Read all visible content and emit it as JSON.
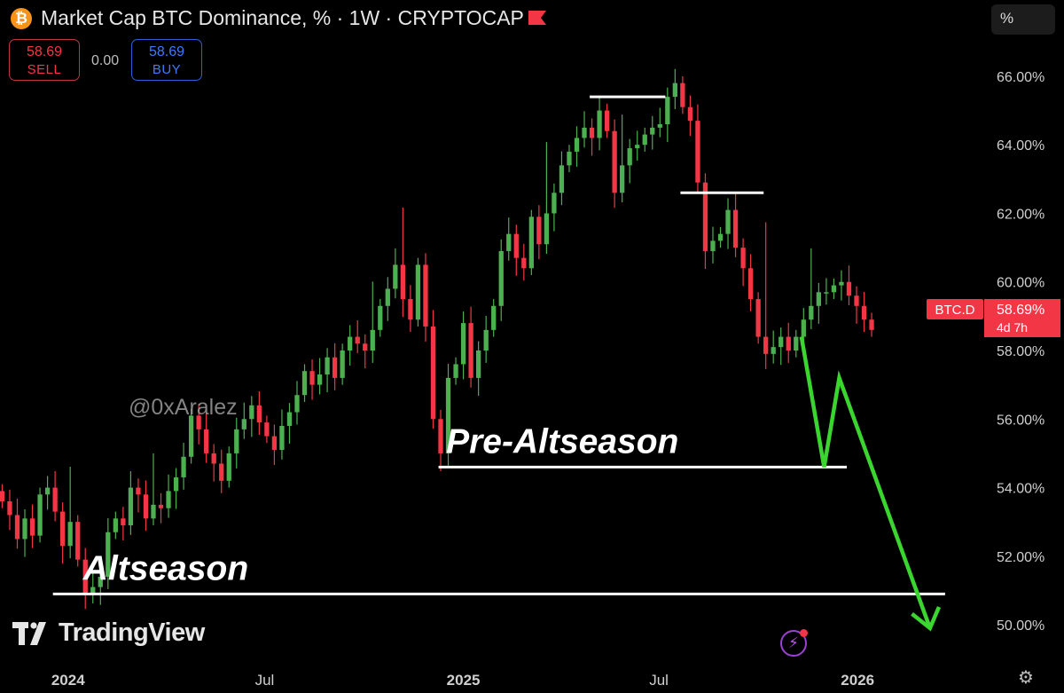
{
  "header": {
    "title": "Market Cap BTC Dominance, % · 1W · CRYPTOCAP",
    "coin_icon": "bitcoin-icon",
    "flag_icon": "flag-icon",
    "sell_price": "58.69",
    "sell_label": "SELL",
    "spread": "0.00",
    "buy_price": "58.69",
    "buy_label": "BUY",
    "scale_button": "%"
  },
  "watermark": {
    "handle": "@0xAralez",
    "brand": "TradingView"
  },
  "price_tag": {
    "symbol": "BTC.D",
    "price": "58.69%",
    "countdown": "4d 7h"
  },
  "colors": {
    "up": "#4caf50",
    "down": "#f23645",
    "projection": "#3bd52f",
    "level": "#ffffff",
    "axis_text": "#cfcfcf"
  },
  "chart_data": {
    "type": "candlestick",
    "title": "Market Cap BTC Dominance, % · 1W · CRYPTOCAP",
    "y_unit": "%",
    "ylim": [
      49.2,
      66.8
    ],
    "y_ticks": [
      "50.00%",
      "52.00%",
      "54.00%",
      "56.00%",
      "58.00%",
      "60.00%",
      "62.00%",
      "64.00%",
      "66.00%"
    ],
    "y_tick_values": [
      50,
      52,
      54,
      56,
      58,
      60,
      62,
      64,
      66
    ],
    "x_ticks": [
      "2024",
      "Jul",
      "2025",
      "Jul",
      "2026"
    ],
    "x_tick_dates": [
      "2024-01-01",
      "2024-07-01",
      "2025-01-01",
      "2025-07-01",
      "2026-01-01"
    ],
    "xlim": [
      "2023-10-30",
      "2026-04-20"
    ],
    "last_price": 58.69,
    "closes": [
      53.6,
      53.2,
      52.5,
      53.1,
      52.6,
      53.8,
      54.0,
      53.3,
      52.3,
      53.0,
      51.9,
      50.9,
      51.1,
      51.4,
      52.7,
      53.1,
      52.9,
      54.0,
      53.8,
      53.1,
      53.5,
      53.4,
      53.9,
      54.3,
      54.9,
      56.1,
      55.7,
      55.0,
      54.7,
      54.2,
      55.0,
      55.7,
      56.0,
      56.4,
      55.9,
      55.5,
      55.1,
      55.8,
      56.2,
      56.7,
      57.4,
      57.0,
      57.3,
      57.8,
      57.2,
      58.0,
      58.4,
      58.2,
      58.0,
      58.6,
      59.3,
      59.8,
      60.5,
      59.5,
      58.9,
      60.5,
      58.7,
      56.0,
      55.0,
      57.2,
      57.6,
      58.8,
      57.2,
      58.0,
      58.6,
      59.3,
      60.9,
      61.4,
      60.7,
      60.4,
      61.9,
      61.1,
      62.0,
      62.6,
      63.4,
      63.8,
      64.2,
      64.5,
      64.2,
      65.0,
      64.4,
      62.6,
      63.4,
      63.9,
      64.0,
      64.3,
      64.5,
      64.6,
      65.4,
      65.8,
      65.1,
      64.7,
      62.9,
      60.9,
      61.2,
      61.4,
      62.1,
      61.0,
      60.4,
      59.5,
      58.4,
      57.9,
      58.1,
      58.4,
      58.0,
      58.4,
      58.9,
      59.3,
      59.7,
      59.7,
      59.9,
      60.0,
      59.6,
      59.3,
      58.9,
      58.6
    ],
    "annotations": [
      {
        "text": "Pre-Altseason",
        "level": 54.6
      },
      {
        "text": "Altseason",
        "level": 50.9
      }
    ],
    "resistance_levels": [
      {
        "level": 65.4,
        "from": "2025-04-28",
        "to": "2025-07-07"
      },
      {
        "level": 62.6,
        "from": "2025-07-21",
        "to": "2025-10-06"
      }
    ],
    "support_levels": [
      {
        "level": 54.6,
        "from": "2024-12-09",
        "to": "2025-12-22"
      },
      {
        "level": 50.9,
        "from": "2023-12-18",
        "to": "2026-03-23"
      }
    ],
    "projection": [
      {
        "date": "2025-11-10",
        "value": 58.4
      },
      {
        "date": "2025-12-01",
        "value": 54.6
      },
      {
        "date": "2025-12-15",
        "value": 57.2
      },
      {
        "date": "2026-03-09",
        "value": 49.9
      }
    ]
  }
}
